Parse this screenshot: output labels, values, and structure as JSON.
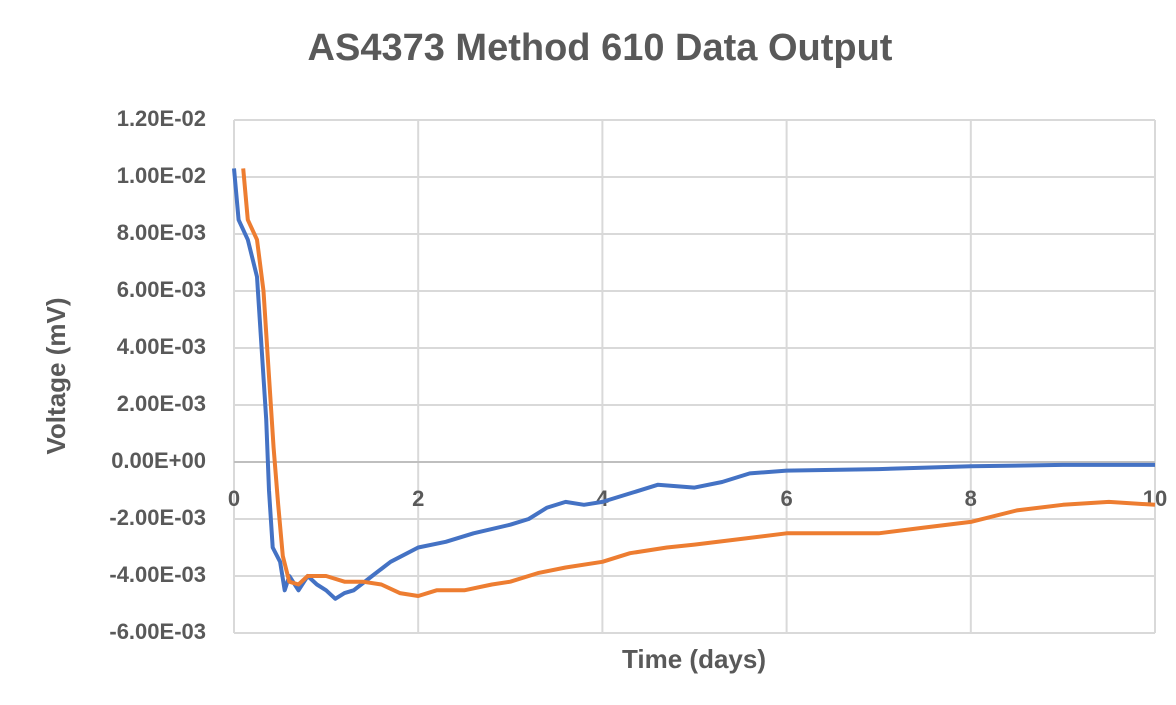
{
  "chart_data": {
    "type": "line",
    "title": "AS4373 Method 610 Data Output",
    "x_label": "Time (days)",
    "y_label": "Voltage (mV)",
    "xlim": [
      0,
      10
    ],
    "xticks": [
      0,
      2,
      4,
      6,
      8,
      10
    ],
    "ylim": [
      -0.006,
      0.012
    ],
    "yticks": [
      {
        "value": -0.006,
        "label": "-6.00E-03"
      },
      {
        "value": -0.004,
        "label": "-4.00E-03"
      },
      {
        "value": -0.002,
        "label": "-2.00E-03"
      },
      {
        "value": 0,
        "label": "0.00E+00"
      },
      {
        "value": 0.002,
        "label": "2.00E-03"
      },
      {
        "value": 0.004,
        "label": "4.00E-03"
      },
      {
        "value": 0.006,
        "label": "6.00E-03"
      },
      {
        "value": 0.008,
        "label": "8.00E-03"
      },
      {
        "value": 0.01,
        "label": "1.00E-02"
      },
      {
        "value": 0.012,
        "label": "1.20E-02"
      }
    ],
    "grid": true,
    "series": [
      {
        "color": "#4472c4",
        "x": [
          0,
          0.05,
          0.15,
          0.25,
          0.3,
          0.35,
          0.38,
          0.42,
          0.5,
          0.55,
          0.6,
          0.7,
          0.8,
          0.9,
          1.0,
          1.1,
          1.2,
          1.3,
          1.5,
          1.7,
          2.0,
          2.3,
          2.6,
          3.0,
          3.2,
          3.4,
          3.6,
          3.8,
          4.0,
          4.3,
          4.6,
          5.0,
          5.3,
          5.6,
          6.0,
          7.0,
          8.0,
          9.0,
          10
        ],
        "values": [
          0.0103,
          0.0085,
          0.0078,
          0.0065,
          0.004,
          0.0015,
          -0.001,
          -0.003,
          -0.0035,
          -0.0045,
          -0.004,
          -0.0045,
          -0.004,
          -0.0043,
          -0.0045,
          -0.0048,
          -0.0046,
          -0.0045,
          -0.004,
          -0.0035,
          -0.003,
          -0.0028,
          -0.0025,
          -0.0022,
          -0.002,
          -0.0016,
          -0.0014,
          -0.0015,
          -0.0014,
          -0.0011,
          -0.0008,
          -0.0009,
          -0.0007,
          -0.0004,
          -0.0003,
          -0.00025,
          -0.00015,
          -0.0001,
          -0.0001
        ]
      },
      {
        "color": "#ed7d31",
        "x": [
          0.1,
          0.15,
          0.25,
          0.32,
          0.38,
          0.43,
          0.48,
          0.53,
          0.6,
          0.7,
          0.8,
          1.0,
          1.2,
          1.4,
          1.6,
          1.8,
          2.0,
          2.2,
          2.5,
          2.8,
          3.0,
          3.3,
          3.6,
          4.0,
          4.3,
          4.7,
          5.0,
          5.5,
          6.0,
          6.5,
          7.0,
          7.5,
          8.0,
          8.5,
          9.0,
          9.5,
          10
        ],
        "values": [
          0.0103,
          0.0085,
          0.0078,
          0.006,
          0.003,
          0.0005,
          -0.0015,
          -0.0033,
          -0.0042,
          -0.0043,
          -0.004,
          -0.004,
          -0.0042,
          -0.0042,
          -0.0043,
          -0.0046,
          -0.0047,
          -0.0045,
          -0.0045,
          -0.0043,
          -0.0042,
          -0.0039,
          -0.0037,
          -0.0035,
          -0.0032,
          -0.003,
          -0.0029,
          -0.0027,
          -0.0025,
          -0.0025,
          -0.0025,
          -0.0023,
          -0.0021,
          -0.0017,
          -0.0015,
          -0.0014,
          -0.0015
        ]
      }
    ]
  }
}
